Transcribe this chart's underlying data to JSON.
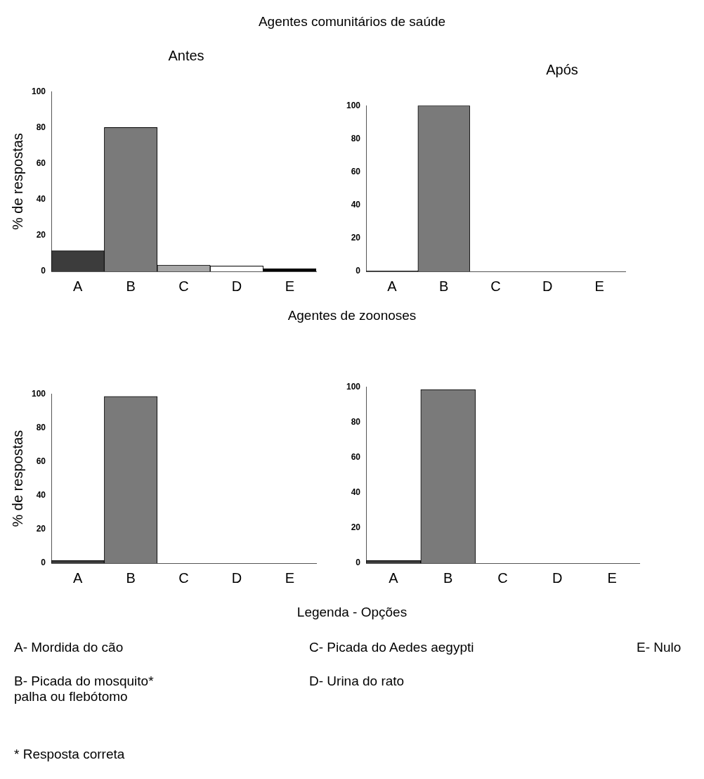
{
  "chart_data": [
    {
      "type": "bar",
      "title": "Antes",
      "ylabel": "% de respostas",
      "categories": [
        "A",
        "B",
        "C",
        "D",
        "E"
      ],
      "values": [
        11.5,
        80,
        3.5,
        3,
        1.5
      ],
      "colors": [
        "#3c3c3c",
        "#7a7a7a",
        "#a8a8a8",
        "#ffffff",
        "#000000"
      ],
      "ylim": [
        0,
        100
      ],
      "yticks": [
        0,
        20,
        40,
        60,
        80,
        100
      ],
      "annotations": [
        "Agentes comunitários de saúde"
      ]
    },
    {
      "type": "bar",
      "title": "Após",
      "categories": [
        "A",
        "B",
        "C",
        "D",
        "E"
      ],
      "values": [
        0.3,
        100,
        0,
        0,
        0
      ],
      "colors": [
        "#3c3c3c",
        "#7a7a7a",
        "#a8a8a8",
        "#ffffff",
        "#000000"
      ],
      "ylim": [
        0,
        100
      ],
      "yticks": [
        0,
        20,
        40,
        60,
        80,
        100
      ]
    },
    {
      "type": "bar",
      "ylabel": "% de respostas",
      "categories": [
        "A",
        "B",
        "C",
        "D",
        "E"
      ],
      "values": [
        1.5,
        98.5,
        0,
        0,
        0
      ],
      "colors": [
        "#3c3c3c",
        "#7a7a7a",
        "#a8a8a8",
        "#ffffff",
        "#000000"
      ],
      "ylim": [
        0,
        100
      ],
      "yticks": [
        0,
        20,
        40,
        60,
        80,
        100
      ],
      "annotations": [
        "Agentes de zoonoses"
      ]
    },
    {
      "type": "bar",
      "categories": [
        "A",
        "B",
        "C",
        "D",
        "E"
      ],
      "values": [
        1.5,
        98.5,
        0,
        0,
        0
      ],
      "colors": [
        "#3c3c3c",
        "#7a7a7a",
        "#a8a8a8",
        "#ffffff",
        "#000000"
      ],
      "ylim": [
        0,
        100
      ],
      "yticks": [
        0,
        20,
        40,
        60,
        80,
        100
      ],
      "annotations": [
        "Legenda - Opções",
        "A-   Mordida do cão",
        "B- Picada do mosquito* palha ou flebótomo",
        "C- Picada do Aedes aegypti",
        "D- Urina do rato",
        "E- Nulo",
        "* Resposta correta"
      ]
    }
  ]
}
